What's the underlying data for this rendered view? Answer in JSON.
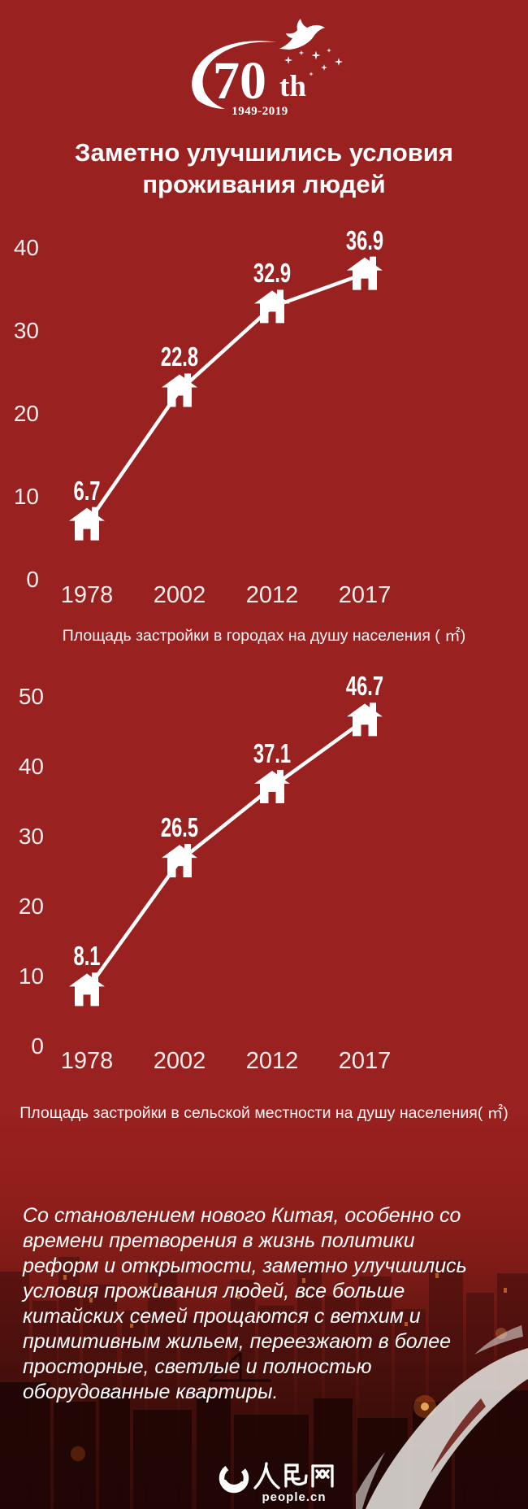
{
  "colors": {
    "background": "#992120",
    "line": "#ffffff",
    "text": "#ffffff",
    "scene_dark": "#320b05",
    "swoosh_light": "#e9e6e2"
  },
  "logo": {
    "number": "70",
    "suffix": "th",
    "years": "1949-2019"
  },
  "title": "Заметно улучшились условия проживания людей",
  "chart_data": [
    {
      "type": "line",
      "title": "Площадь застройки в городах на душу населения ( ㎡)",
      "categories": [
        "1978",
        "2002",
        "2012",
        "2017"
      ],
      "values": [
        6.7,
        22.8,
        32.9,
        36.9
      ],
      "yticks": [
        0,
        10,
        20,
        30,
        40
      ],
      "ylim": [
        0,
        44
      ],
      "xlabel": "",
      "ylabel": "",
      "grid": false,
      "legend": "none",
      "marker": "house-icon",
      "line_color": "#ffffff"
    },
    {
      "type": "line",
      "title": "Площадь застройки в сельской местности на душу населения( ㎡)",
      "categories": [
        "1978",
        "2002",
        "2012",
        "2017"
      ],
      "values": [
        8.1,
        26.5,
        37.1,
        46.7
      ],
      "yticks": [
        0,
        10,
        20,
        30,
        40,
        50
      ],
      "ylim": [
        0,
        52
      ],
      "xlabel": "",
      "ylabel": "",
      "grid": false,
      "legend": "none",
      "marker": "house-icon",
      "line_color": "#ffffff"
    }
  ],
  "paragraph": "Со становлением нового Китая, особенно со времени претворения в жизнь политики реформ и открытости, заметно улучшились условия проживания людей, все больше китайских семей прощаются с ветхим и примитивным жильем, переезжают в более просторные, светлые и полностью оборудованные квартиры.",
  "footer": {
    "brand_cn": "人民网",
    "brand_url": "people.cn"
  }
}
